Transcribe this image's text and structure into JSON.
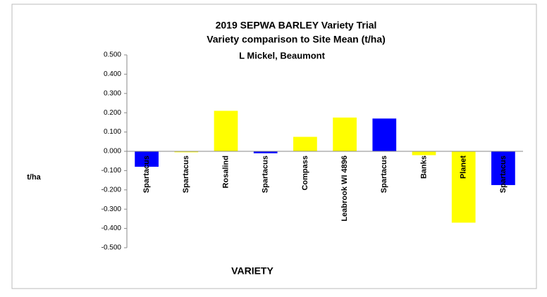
{
  "chart_data": {
    "type": "bar",
    "title": "2019 SEPWA BARLEY Variety Trial",
    "subtitle": "Variety comparison to Site Mean (t/ha)",
    "annotation": "L Mickel, Beaumont",
    "y_label": "t/ha",
    "x_label": "VARIETY",
    "categories": [
      "Spartacus",
      "Spartacus",
      "Rosalind",
      "Spartacus",
      "Compass",
      "Leabrook WI 4896",
      "Spartacus",
      "Banks",
      "Planet",
      "Spartacus"
    ],
    "values": [
      -0.08,
      -0.005,
      0.21,
      -0.01,
      0.075,
      0.175,
      0.17,
      -0.02,
      -0.37,
      -0.175
    ],
    "colors": [
      "#0000ff",
      "#ffff00",
      "#ffff00",
      "#0000ff",
      "#ffff00",
      "#ffff00",
      "#0000ff",
      "#ffff00",
      "#ffff00",
      "#0000ff"
    ],
    "ylim": [
      -0.5,
      0.5
    ],
    "yticks": [
      {
        "value": 0.5,
        "label": "0.500"
      },
      {
        "value": 0.4,
        "label": "0.400"
      },
      {
        "value": 0.3,
        "label": "0.300"
      },
      {
        "value": 0.2,
        "label": "0.200"
      },
      {
        "value": 0.1,
        "label": "0.100"
      },
      {
        "value": 0,
        "label": "0.000"
      },
      {
        "value": -0.1,
        "label": "-0.100"
      },
      {
        "value": -0.2,
        "label": "-0.200"
      },
      {
        "value": -0.3,
        "label": "-0.300"
      },
      {
        "value": -0.4,
        "label": "-0.400"
      },
      {
        "value": -0.5,
        "label": "-0.500"
      }
    ],
    "grid": false
  }
}
